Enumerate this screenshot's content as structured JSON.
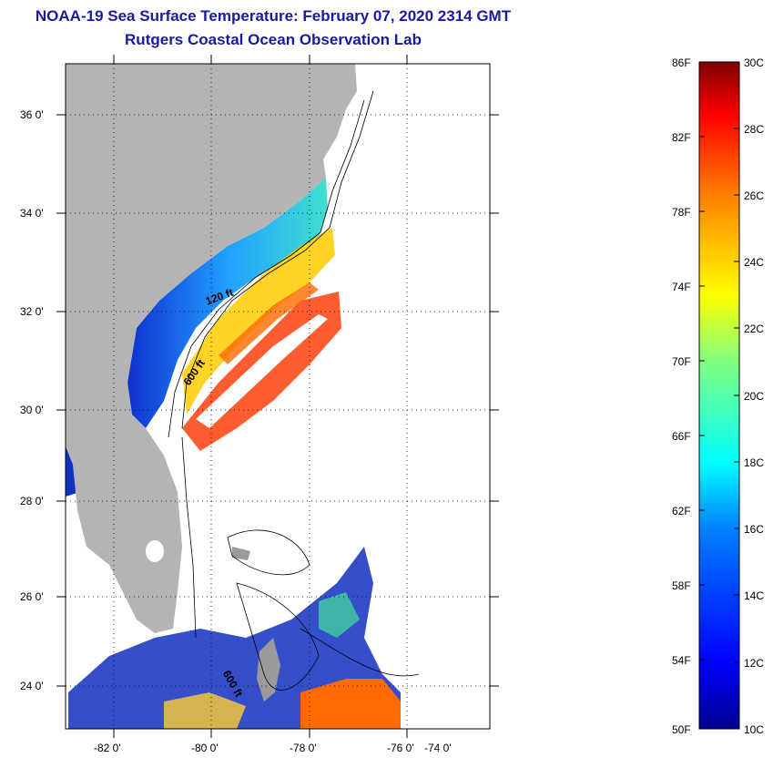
{
  "title": "NOAA-19 Sea Surface Temperature:  February 07, 2020 2314 GMT",
  "subtitle": "Rutgers Coastal Ocean Observation Lab",
  "lat_labels": [
    "36 0'",
    "34 0'",
    "32 0'",
    "30 0'",
    "28 0'",
    "26 0'",
    "24 0'"
  ],
  "lon_labels": [
    "-82 0'",
    "-80 0'",
    "-78 0'",
    "-76 0'",
    "-74 0'"
  ],
  "isobath_labels": [
    "120 ft",
    "600 ft",
    "600 ft"
  ],
  "colorbar": {
    "f_labels": [
      "86F",
      "82F",
      "78F",
      "74F",
      "70F",
      "66F",
      "62F",
      "58F",
      "54F",
      "50F"
    ],
    "c_labels": [
      "30C",
      "28C",
      "26C",
      "24C",
      "22C",
      "20C",
      "18C",
      "16C",
      "14C",
      "12C",
      "10C"
    ]
  },
  "colors": {
    "land": "#b4b4b4",
    "title": "#1a1aa0"
  }
}
